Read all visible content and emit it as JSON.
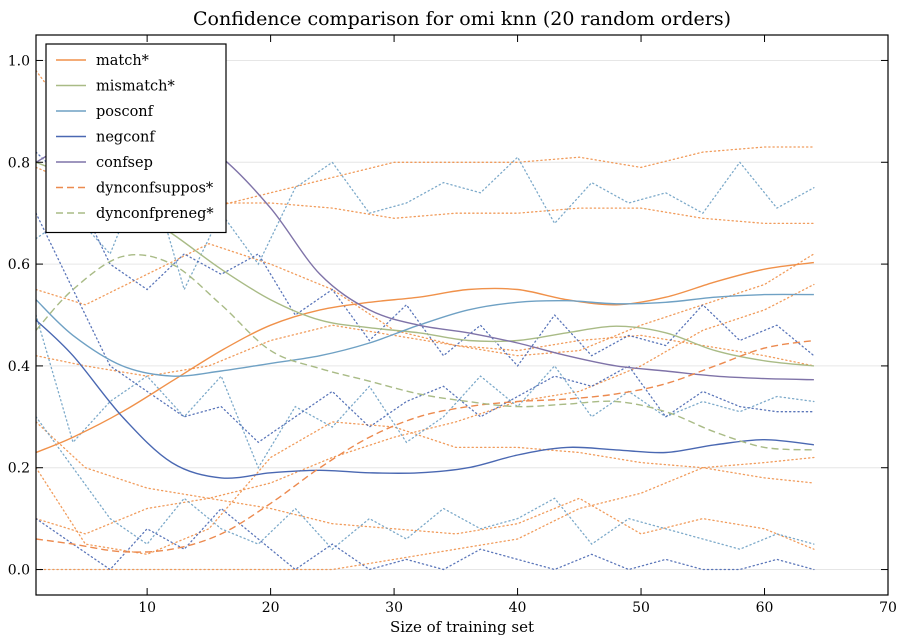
{
  "chart_data": {
    "type": "line",
    "title": "Confidence comparison for omi knn (20 random orders)",
    "xlabel": "Size of training set",
    "ylabel": "",
    "xlim": [
      1,
      70
    ],
    "ylim": [
      -0.05,
      1.05
    ],
    "xticks": [
      "10",
      "20",
      "30",
      "40",
      "50",
      "60",
      "70"
    ],
    "yticks": [
      "0.0",
      "0.2",
      "0.4",
      "0.6",
      "0.8",
      "1.0"
    ],
    "grid": "horizontal",
    "legend_position": "top-left",
    "series": [
      {
        "name": "match*",
        "color": "#f0914a",
        "style": "solid",
        "x": [
          1,
          4,
          8,
          12,
          16,
          20,
          24,
          28,
          32,
          36,
          40,
          44,
          48,
          52,
          56,
          60,
          64
        ],
        "y": [
          0.23,
          0.26,
          0.31,
          0.37,
          0.43,
          0.48,
          0.51,
          0.525,
          0.535,
          0.55,
          0.55,
          0.53,
          0.52,
          0.535,
          0.565,
          0.59,
          0.603
        ]
      },
      {
        "name": "mismatch*",
        "color": "#a9bb86",
        "style": "solid",
        "x": [
          1,
          4,
          8,
          12,
          16,
          20,
          24,
          28,
          32,
          36,
          40,
          44,
          48,
          52,
          56,
          60,
          64
        ],
        "y": [
          0.8,
          0.77,
          0.72,
          0.66,
          0.59,
          0.53,
          0.49,
          0.475,
          0.465,
          0.45,
          0.45,
          0.465,
          0.478,
          0.465,
          0.43,
          0.41,
          0.4
        ]
      },
      {
        "name": "posconf",
        "color": "#6fa1c4",
        "style": "solid",
        "x": [
          1,
          4,
          8,
          12,
          16,
          20,
          24,
          28,
          32,
          36,
          40,
          44,
          48,
          52,
          56,
          60,
          64
        ],
        "y": [
          0.53,
          0.46,
          0.4,
          0.38,
          0.39,
          0.405,
          0.42,
          0.445,
          0.48,
          0.51,
          0.525,
          0.528,
          0.522,
          0.525,
          0.535,
          0.54,
          0.54
        ]
      },
      {
        "name": "negconf",
        "color": "#4a68b2",
        "style": "solid",
        "x": [
          1,
          4,
          8,
          12,
          16,
          20,
          24,
          28,
          32,
          36,
          40,
          44,
          48,
          52,
          56,
          60,
          64
        ],
        "y": [
          0.49,
          0.42,
          0.3,
          0.21,
          0.18,
          0.19,
          0.195,
          0.19,
          0.19,
          0.2,
          0.225,
          0.24,
          0.235,
          0.23,
          0.245,
          0.255,
          0.245
        ]
      },
      {
        "name": "confsep",
        "color": "#7f73a8",
        "style": "solid",
        "x": [
          1,
          4,
          8,
          12,
          16,
          20,
          24,
          28,
          32,
          36,
          40,
          44,
          48,
          52,
          56,
          60,
          64
        ],
        "y": [
          0.8,
          0.84,
          0.87,
          0.87,
          0.81,
          0.71,
          0.58,
          0.51,
          0.48,
          0.465,
          0.445,
          0.42,
          0.4,
          0.39,
          0.38,
          0.375,
          0.373
        ]
      },
      {
        "name": "dynconfsuppos*",
        "color": "#ec8a4f",
        "style": "dashed",
        "x": [
          1,
          4,
          8,
          12,
          16,
          20,
          24,
          28,
          32,
          36,
          40,
          44,
          48,
          52,
          56,
          60,
          64
        ],
        "y": [
          0.06,
          0.05,
          0.035,
          0.04,
          0.07,
          0.13,
          0.2,
          0.26,
          0.3,
          0.32,
          0.33,
          0.335,
          0.345,
          0.365,
          0.4,
          0.435,
          0.45
        ]
      },
      {
        "name": "dynconfpreneg*",
        "color": "#a9bb86",
        "style": "dashed",
        "x": [
          1,
          4,
          8,
          12,
          16,
          20,
          24,
          28,
          32,
          36,
          40,
          44,
          48,
          52,
          56,
          60,
          64
        ],
        "y": [
          0.47,
          0.55,
          0.615,
          0.6,
          0.52,
          0.43,
          0.395,
          0.37,
          0.345,
          0.33,
          0.32,
          0.325,
          0.33,
          0.31,
          0.27,
          0.24,
          0.235
        ]
      }
    ],
    "individual_runs": [
      {
        "color": "#f0914a",
        "x": [
          1,
          5,
          10,
          15,
          20,
          25,
          30,
          35,
          40,
          45,
          50,
          55,
          60,
          64
        ],
        "y": [
          0.79,
          0.75,
          0.72,
          0.71,
          0.74,
          0.77,
          0.8,
          0.8,
          0.8,
          0.81,
          0.79,
          0.82,
          0.83,
          0.83
        ]
      },
      {
        "color": "#f0914a",
        "x": [
          1,
          5,
          10,
          15,
          20,
          25,
          30,
          35,
          40,
          45,
          50,
          55,
          60,
          64
        ],
        "y": [
          0.98,
          0.85,
          0.75,
          0.72,
          0.72,
          0.71,
          0.69,
          0.7,
          0.7,
          0.71,
          0.71,
          0.69,
          0.68,
          0.68
        ]
      },
      {
        "color": "#f0914a",
        "x": [
          1,
          5,
          10,
          15,
          20,
          25,
          30,
          35,
          40,
          45,
          50,
          55,
          60,
          64
        ],
        "y": [
          0.29,
          0.2,
          0.16,
          0.14,
          0.17,
          0.22,
          0.26,
          0.29,
          0.33,
          0.35,
          0.4,
          0.47,
          0.51,
          0.56
        ]
      },
      {
        "color": "#f0914a",
        "x": [
          1,
          5,
          10,
          15,
          20,
          25,
          30,
          35,
          40,
          45,
          50,
          55,
          60,
          64
        ],
        "y": [
          0.2,
          0.05,
          0.03,
          0.08,
          0.22,
          0.29,
          0.28,
          0.24,
          0.24,
          0.23,
          0.21,
          0.2,
          0.18,
          0.17
        ]
      },
      {
        "color": "#f0914a",
        "x": [
          1,
          5,
          10,
          15,
          20,
          25,
          30,
          35,
          40,
          45,
          50,
          55,
          60,
          64
        ],
        "y": [
          0.0,
          0.0,
          0.0,
          0.0,
          0.0,
          0.0,
          0.02,
          0.04,
          0.06,
          0.12,
          0.15,
          0.2,
          0.21,
          0.22
        ]
      },
      {
        "color": "#f0914a",
        "x": [
          1,
          5,
          10,
          15,
          20,
          25,
          30,
          35,
          40,
          45,
          50,
          55,
          60,
          64
        ],
        "y": [
          0.1,
          0.07,
          0.12,
          0.14,
          0.12,
          0.09,
          0.08,
          0.07,
          0.09,
          0.14,
          0.07,
          0.1,
          0.08,
          0.04
        ]
      },
      {
        "color": "#f0914a",
        "x": [
          1,
          5,
          10,
          15,
          20,
          25,
          30,
          35,
          40,
          45,
          50,
          55,
          60,
          64
        ],
        "y": [
          0.55,
          0.52,
          0.58,
          0.64,
          0.6,
          0.55,
          0.47,
          0.44,
          0.42,
          0.43,
          0.48,
          0.52,
          0.56,
          0.62
        ]
      },
      {
        "color": "#f0914a",
        "x": [
          1,
          5,
          10,
          15,
          20,
          25,
          30,
          35,
          40,
          45,
          50,
          55,
          60,
          64
        ],
        "y": [
          0.42,
          0.4,
          0.38,
          0.4,
          0.45,
          0.48,
          0.46,
          0.44,
          0.43,
          0.45,
          0.46,
          0.44,
          0.42,
          0.4
        ]
      },
      {
        "color": "#6fa1c4",
        "x": [
          1,
          4,
          7,
          10,
          13,
          16,
          19,
          22,
          25,
          28,
          31,
          34,
          37,
          40,
          43,
          46,
          49,
          52,
          55,
          58,
          61,
          64
        ],
        "y": [
          0.65,
          0.7,
          0.62,
          0.8,
          0.55,
          0.7,
          0.6,
          0.75,
          0.8,
          0.7,
          0.72,
          0.76,
          0.74,
          0.81,
          0.68,
          0.76,
          0.72,
          0.74,
          0.7,
          0.8,
          0.71,
          0.75
        ]
      },
      {
        "color": "#6fa1c4",
        "x": [
          1,
          4,
          7,
          10,
          13,
          16,
          19,
          22,
          25,
          28,
          31,
          34,
          37,
          40,
          43,
          46,
          49,
          52,
          55,
          58,
          61,
          64
        ],
        "y": [
          0.5,
          0.25,
          0.33,
          0.38,
          0.3,
          0.38,
          0.2,
          0.32,
          0.28,
          0.36,
          0.25,
          0.3,
          0.38,
          0.32,
          0.4,
          0.3,
          0.35,
          0.3,
          0.33,
          0.31,
          0.34,
          0.33
        ]
      },
      {
        "color": "#6fa1c4",
        "x": [
          1,
          4,
          7,
          10,
          13,
          16,
          19,
          22,
          25,
          28,
          31,
          34,
          37,
          40,
          43,
          46,
          49,
          52,
          55,
          58,
          61,
          64
        ],
        "y": [
          0.3,
          0.2,
          0.1,
          0.05,
          0.14,
          0.08,
          0.05,
          0.12,
          0.04,
          0.1,
          0.06,
          0.12,
          0.08,
          0.1,
          0.14,
          0.05,
          0.1,
          0.08,
          0.06,
          0.04,
          0.07,
          0.05
        ]
      },
      {
        "color": "#4a68b2",
        "x": [
          1,
          4,
          7,
          10,
          13,
          16,
          19,
          22,
          25,
          28,
          31,
          34,
          37,
          40,
          43,
          46,
          49,
          52,
          55,
          58,
          61,
          64
        ],
        "y": [
          0.82,
          0.75,
          0.6,
          0.55,
          0.62,
          0.58,
          0.62,
          0.5,
          0.55,
          0.45,
          0.52,
          0.42,
          0.48,
          0.4,
          0.5,
          0.42,
          0.46,
          0.44,
          0.52,
          0.45,
          0.48,
          0.42
        ]
      },
      {
        "color": "#4a68b2",
        "x": [
          1,
          4,
          7,
          10,
          13,
          16,
          19,
          22,
          25,
          28,
          31,
          34,
          37,
          40,
          43,
          46,
          49,
          52,
          55,
          58,
          61,
          64
        ],
        "y": [
          0.1,
          0.05,
          0.0,
          0.08,
          0.04,
          0.12,
          0.06,
          0.0,
          0.05,
          0.0,
          0.02,
          0.0,
          0.04,
          0.02,
          0.0,
          0.03,
          0.0,
          0.02,
          0.0,
          0.0,
          0.02,
          0.0
        ]
      },
      {
        "color": "#4a68b2",
        "x": [
          1,
          4,
          7,
          10,
          13,
          16,
          19,
          22,
          25,
          28,
          31,
          34,
          37,
          40,
          43,
          46,
          49,
          52,
          55,
          58,
          61,
          64
        ],
        "y": [
          0.7,
          0.55,
          0.4,
          0.35,
          0.3,
          0.32,
          0.25,
          0.3,
          0.35,
          0.28,
          0.33,
          0.36,
          0.3,
          0.34,
          0.38,
          0.36,
          0.4,
          0.3,
          0.35,
          0.32,
          0.31,
          0.31
        ]
      }
    ]
  }
}
